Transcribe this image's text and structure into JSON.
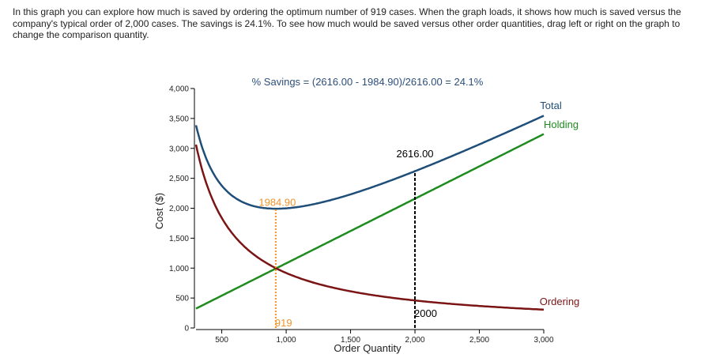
{
  "intro_text": "In this graph you can explore how much is saved by ordering the optimum number of 919 cases. When the graph loads, it shows how much is saved versus the company's typical order of 2,000 cases. The savings is 24.1%. To see how much would be saved versus other order quantities, drag left or right on the graph to change the comparison quantity.",
  "chart_data": {
    "type": "line",
    "title": "% Savings = (2616.00 - 1984.90)/2616.00 = 24.1%",
    "xlabel": "Order Quantity",
    "ylabel": "Cost ($)",
    "xlim": [
      300,
      3000
    ],
    "ylim": [
      0,
      4000
    ],
    "x_ticks": [
      500,
      1000,
      1500,
      2000,
      2500,
      3000
    ],
    "x_tick_labels": [
      "500",
      "1,000",
      "1,500",
      "2,000",
      "2,500",
      "3,000"
    ],
    "y_ticks": [
      0,
      500,
      1000,
      1500,
      2000,
      2500,
      3000,
      3500,
      4000
    ],
    "y_tick_labels": [
      "0",
      "500",
      "1,000",
      "1,500",
      "2,000",
      "2,500",
      "3,000",
      "3,500",
      "4,000"
    ],
    "series": [
      {
        "name": "Total",
        "color": "#1f4e79",
        "formula": "ordering_plus_holding"
      },
      {
        "name": "Holding",
        "color": "#1e8c1e",
        "per_unit": 1.0798
      },
      {
        "name": "Ordering",
        "color": "#7b1414",
        "numerator": 918780
      }
    ],
    "optimum": {
      "x": 919,
      "x_label": "919",
      "y": 1984.9,
      "y_label": "1984.90",
      "color": "#f0932b"
    },
    "comparison": {
      "x": 2000,
      "x_label": "2000",
      "y": 2616.0,
      "y_label": "2616.00",
      "color": "#000000"
    },
    "grid": false
  }
}
